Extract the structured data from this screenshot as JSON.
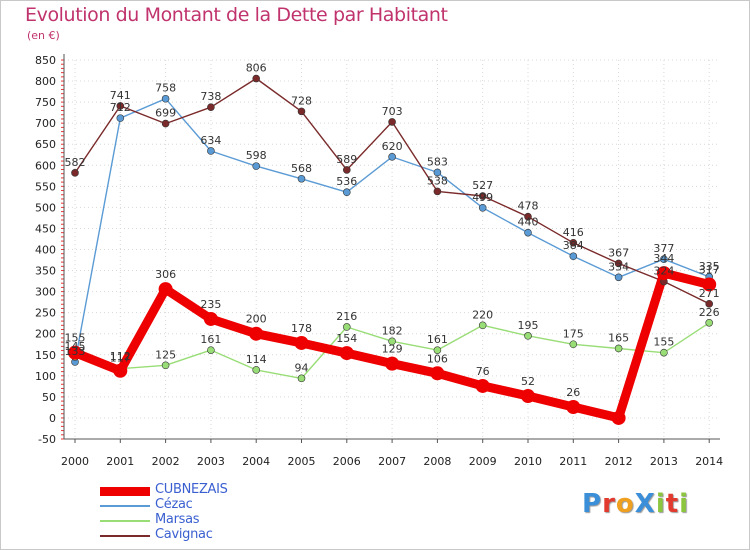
{
  "header": {
    "title": "Evolution du Montant de la Dette par Habitant",
    "unit": "(en €)"
  },
  "brand": {
    "logo": "ProXiti",
    "letters": [
      {
        "char": "P",
        "color": "#3a8fd8"
      },
      {
        "char": "r",
        "color": "#e23a2e"
      },
      {
        "char": "o",
        "color": "#f0a020"
      },
      {
        "char": "X",
        "color": "#3a8fd8"
      },
      {
        "char": "i",
        "color": "#8cc63f"
      },
      {
        "char": "t",
        "color": "#e23a2e"
      },
      {
        "char": "i",
        "color": "#8cc63f"
      }
    ]
  },
  "chart_data": {
    "type": "line",
    "title": "Evolution du Montant de la Dette par Habitant",
    "ylabel": "(en €)",
    "xlabel": "",
    "ylim": [
      -50,
      850
    ],
    "yticks": [
      -50,
      0,
      50,
      100,
      150,
      200,
      250,
      300,
      350,
      400,
      450,
      500,
      550,
      600,
      650,
      700,
      750,
      800,
      850
    ],
    "grid": true,
    "legend_position": "bottom-left",
    "categories": [
      "2000",
      "2001",
      "2002",
      "2003",
      "2004",
      "2005",
      "2006",
      "2007",
      "2008",
      "2009",
      "2010",
      "2011",
      "2012",
      "2013",
      "2014"
    ],
    "series": [
      {
        "name": "CUBNEZAIS",
        "color": "#ee0000",
        "thick": true,
        "values": [
          155,
          112,
          306,
          235,
          200,
          178,
          154,
          129,
          106,
          76,
          52,
          26,
          0,
          344,
          317
        ],
        "labels": [
          "155",
          "112",
          "306",
          "235",
          "200",
          "178",
          "154",
          "129",
          "106",
          "76",
          "52",
          "26",
          "",
          "344",
          "317"
        ]
      },
      {
        "name": "Cézac",
        "color": "#5b9bd5",
        "thick": false,
        "values": [
          133,
          712,
          758,
          634,
          598,
          568,
          536,
          620,
          583,
          499,
          440,
          384,
          334,
          377,
          335
        ],
        "labels": [
          "133",
          "712",
          "758",
          "634",
          "598",
          "568",
          "536",
          "620",
          "583",
          "499",
          "440",
          "384",
          "334",
          "377",
          "335"
        ]
      },
      {
        "name": "Marsas",
        "color": "#99dd77",
        "thick": false,
        "values": [
          145,
          117,
          125,
          161,
          114,
          94,
          216,
          182,
          161,
          220,
          195,
          175,
          165,
          155,
          226
        ],
        "labels": [
          "145",
          "117",
          "125",
          "161",
          "114",
          "94",
          "216",
          "182",
          "161",
          "220",
          "195",
          "175",
          "165",
          "155",
          "226"
        ]
      },
      {
        "name": "Cavignac",
        "color": "#7a2a2a",
        "thick": false,
        "values": [
          582,
          741,
          699,
          738,
          806,
          728,
          589,
          703,
          538,
          527,
          478,
          416,
          367,
          324,
          271
        ],
        "labels": [
          "582",
          "741",
          "699",
          "738",
          "806",
          "728",
          "589",
          "703",
          "538",
          "527",
          "478",
          "416",
          "367",
          "324",
          "271"
        ]
      }
    ]
  }
}
